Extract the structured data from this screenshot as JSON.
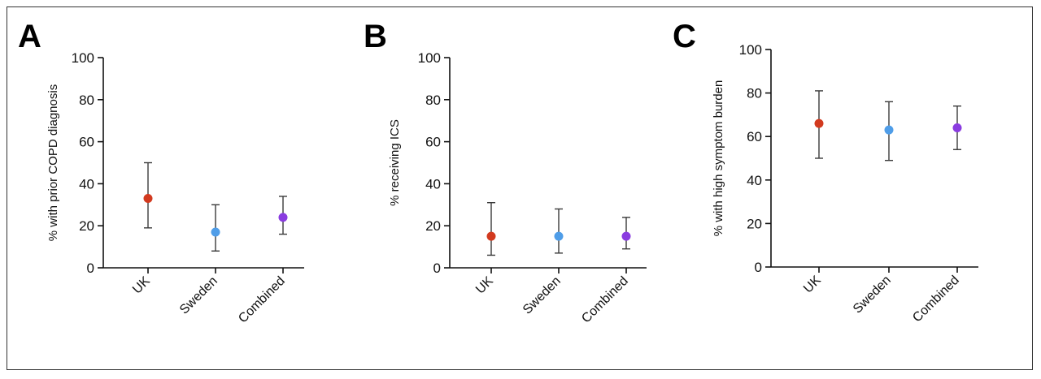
{
  "chart_data": [
    {
      "panel": "A",
      "type": "scatter",
      "ylabel": "% with prior COPD diagnosis",
      "ylim": [
        0,
        100
      ],
      "yticks": [
        0,
        20,
        40,
        60,
        80,
        100
      ],
      "categories": [
        "UK",
        "Sweden",
        "Combined"
      ],
      "values": [
        33,
        17,
        24
      ],
      "lower": [
        19,
        8,
        16
      ],
      "upper": [
        50,
        30,
        34
      ],
      "colors": [
        "#d23a1f",
        "#4f9de8",
        "#8a3ce0"
      ]
    },
    {
      "panel": "B",
      "type": "scatter",
      "ylabel": "% receiving ICS",
      "ylim": [
        0,
        100
      ],
      "yticks": [
        0,
        20,
        40,
        60,
        80,
        100
      ],
      "categories": [
        "UK",
        "Sweden",
        "Combined"
      ],
      "values": [
        15,
        15,
        15
      ],
      "lower": [
        6,
        7,
        9
      ],
      "upper": [
        31,
        28,
        24
      ],
      "colors": [
        "#d23a1f",
        "#4f9de8",
        "#8a3ce0"
      ]
    },
    {
      "panel": "C",
      "type": "scatter",
      "ylabel": "% with high symptom burden",
      "ylim": [
        0,
        100
      ],
      "yticks": [
        0,
        20,
        40,
        60,
        80,
        100
      ],
      "categories": [
        "UK",
        "Sweden",
        "Combined"
      ],
      "values": [
        66,
        63,
        64
      ],
      "lower": [
        50,
        49,
        54
      ],
      "upper": [
        81,
        76,
        74
      ],
      "colors": [
        "#d23a1f",
        "#4f9de8",
        "#8a3ce0"
      ]
    }
  ]
}
